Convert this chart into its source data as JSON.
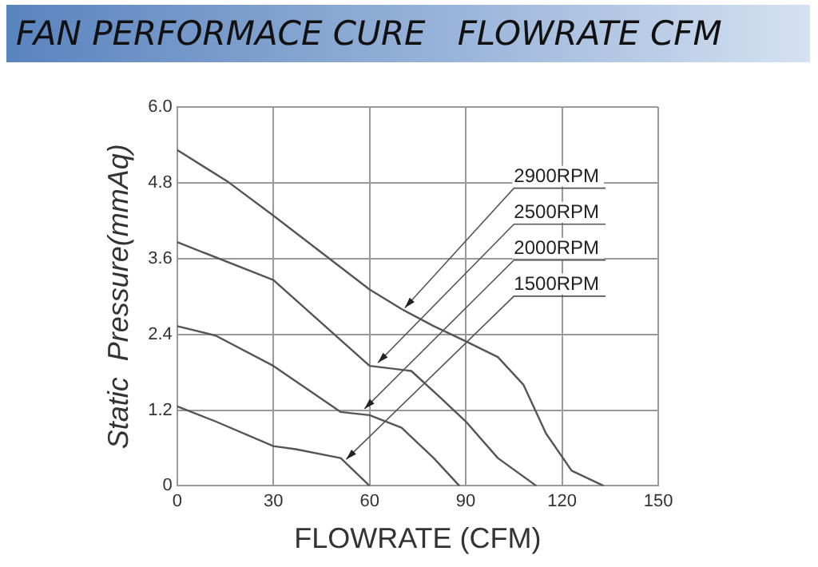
{
  "chart_data": {
    "type": "line",
    "title": "FAN PERFORMACE CURE   FLOWRATE CFM",
    "xlabel": "FLOWRATE (CFM)",
    "ylabel": "Static  Pressure(mmAq)",
    "xlim": [
      0,
      150
    ],
    "xticks": [
      0,
      30,
      60,
      90,
      120,
      150
    ],
    "ylim": [
      0,
      6
    ],
    "yticks": [
      0,
      1.2,
      2.4,
      3.6,
      4.8,
      {
        "value": 6,
        "label": "6.0"
      }
    ],
    "grid": true,
    "legend": false,
    "marker": "none",
    "line_style": "solid",
    "series": [
      {
        "name": "2900RPM",
        "color": "#555555",
        "x": [
          0,
          16,
          30,
          60,
          70,
          80,
          90,
          100,
          108,
          115,
          123,
          133
        ],
        "values": [
          5.32,
          4.81,
          4.28,
          3.11,
          2.8,
          2.53,
          2.29,
          2.04,
          1.6,
          0.83,
          0.24,
          0
        ]
      },
      {
        "name": "2500RPM",
        "color": "#555555",
        "x": [
          0,
          30,
          45,
          60,
          73,
          82,
          90,
          100,
          112
        ],
        "values": [
          3.86,
          3.26,
          2.58,
          1.9,
          1.82,
          1.4,
          1.02,
          0.44,
          0
        ]
      },
      {
        "name": "2000RPM",
        "color": "#555555",
        "x": [
          0,
          12,
          30,
          51,
          60,
          70,
          80,
          88
        ],
        "values": [
          2.53,
          2.38,
          1.9,
          1.17,
          1.12,
          0.92,
          0.44,
          0
        ]
      },
      {
        "name": "1500RPM",
        "color": "#555555",
        "x": [
          0,
          12,
          30,
          37,
          51,
          60
        ],
        "values": [
          1.26,
          1.02,
          0.63,
          0.58,
          0.44,
          0
        ]
      }
    ]
  }
}
